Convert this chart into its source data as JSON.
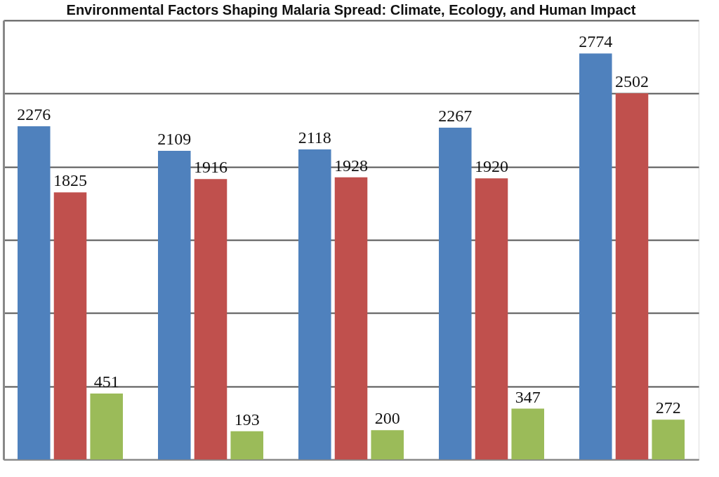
{
  "chart_data": {
    "type": "bar",
    "title": "Environmental Factors Shaping Malaria Spread: Climate, Ecology, and Human Impact",
    "categories": [
      null,
      null,
      null,
      null,
      null
    ],
    "series": [
      {
        "color": "#4f81bd",
        "values": [
          2276,
          2109,
          2118,
          2267,
          2774
        ]
      },
      {
        "color": "#c0504d",
        "values": [
          1825,
          1916,
          1928,
          1920,
          2502
        ]
      },
      {
        "color": "#9bbb59",
        "values": [
          451,
          193,
          200,
          347,
          272
        ]
      }
    ],
    "ylim": [
      0,
      3000
    ],
    "yticks": [
      {
        "value": 0,
        "label": null
      },
      {
        "value": 500,
        "label": null
      },
      {
        "value": 1000,
        "label": null
      },
      {
        "value": 1500,
        "label": null
      },
      {
        "value": 2000,
        "label": null
      },
      {
        "value": 2500,
        "label": null
      },
      {
        "value": 3000,
        "label": null
      }
    ],
    "grid": "y",
    "data_labels": true,
    "tick_labels": false
  }
}
